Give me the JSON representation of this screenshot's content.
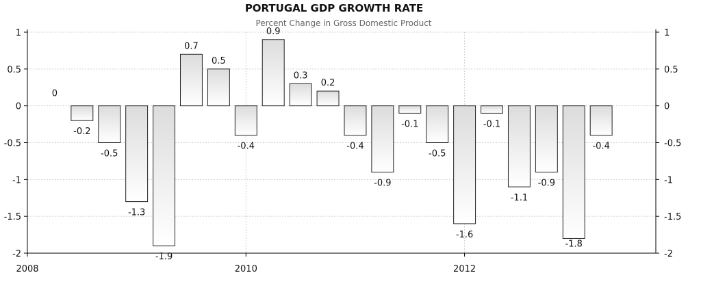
{
  "chart_data": {
    "type": "bar",
    "title": "PORTUGAL GDP GROWTH RATE",
    "subtitle": "Percent Change in Gross Domestic Product",
    "xlabel": "",
    "ylabel": "",
    "ylim": [
      -2,
      1
    ],
    "yticks": [
      1,
      0.5,
      0,
      -0.5,
      -1,
      -1.5,
      -2
    ],
    "ytick_labels": [
      "1",
      "0.5",
      "0",
      "-0.5",
      "-1",
      "-1.5",
      "-2"
    ],
    "xlim": [
      2008,
      2013.75
    ],
    "xticks": [
      2008,
      2010,
      2012
    ],
    "xtick_labels": [
      "2008",
      "2010",
      "2012"
    ],
    "x": [
      2008.25,
      2008.5,
      2008.75,
      2009.0,
      2009.25,
      2009.5,
      2009.75,
      2010.0,
      2010.25,
      2010.5,
      2010.75,
      2011.0,
      2011.25,
      2011.5,
      2011.75,
      2012.0,
      2012.25,
      2012.5,
      2012.75,
      2013.0,
      2013.25
    ],
    "values": [
      0,
      -0.2,
      -0.5,
      -1.3,
      -1.9,
      0.7,
      0.5,
      -0.4,
      0.9,
      0.3,
      0.2,
      -0.4,
      -0.9,
      -0.1,
      -0.5,
      -1.6,
      -0.1,
      -1.1,
      -0.9,
      -1.8,
      -0.4
    ],
    "labels": [
      "0",
      "-0.2",
      "-0.5",
      "-1.3",
      "-1.9",
      "0.7",
      "0.5",
      "-0.4",
      "0.9",
      "0.3",
      "0.2",
      "-0.4",
      "-0.9",
      "-0.1",
      "-0.5",
      "-1.6",
      "-0.1",
      "-1.1",
      "-0.9",
      "-1.8",
      "-0.4"
    ],
    "grid": true,
    "legend": "none",
    "colors": {
      "bar_fill_top": "#dcdcdc",
      "bar_fill_bottom": "#ffffff",
      "bar_stroke": "#222222",
      "grid": "#d0d0d0",
      "axis": "#000000"
    }
  }
}
